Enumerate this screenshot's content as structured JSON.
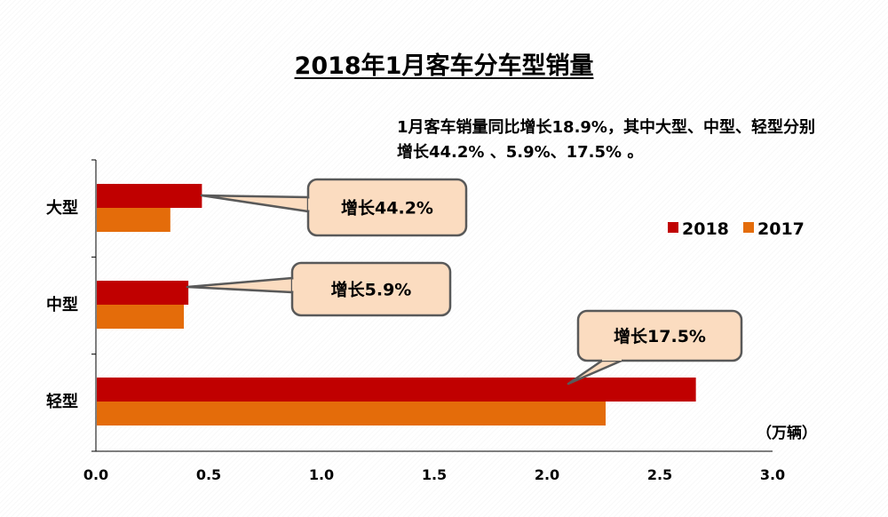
{
  "summary_text": "1月客车销量同比增长18.9%，其中大型、中型、轻型分别增长44.2% 、5.9%、17.5% 。",
  "unit_label": "（万辆）",
  "colors": {
    "series_2018": "#C00000",
    "series_2017": "#E46C0A",
    "callout_fill": "#FBDCC0",
    "callout_border": "#595959"
  },
  "chart_data": {
    "type": "bar",
    "orientation": "horizontal",
    "title": "2018年1月客车分车型销量",
    "categories": [
      "大型",
      "中型",
      "轻型"
    ],
    "series": [
      {
        "name": "2018",
        "values": [
          0.47,
          0.41,
          2.66
        ]
      },
      {
        "name": "2017",
        "values": [
          0.33,
          0.39,
          2.26
        ]
      }
    ],
    "xlim": [
      0,
      3.0
    ],
    "xticks": [
      "0.0",
      "0.5",
      "1.0",
      "1.5",
      "2.0",
      "2.5",
      "3.0"
    ],
    "grid": false,
    "legend_position": "right",
    "annotations": [
      "增长44.2%",
      "增长5.9%",
      "增长17.5%"
    ]
  }
}
